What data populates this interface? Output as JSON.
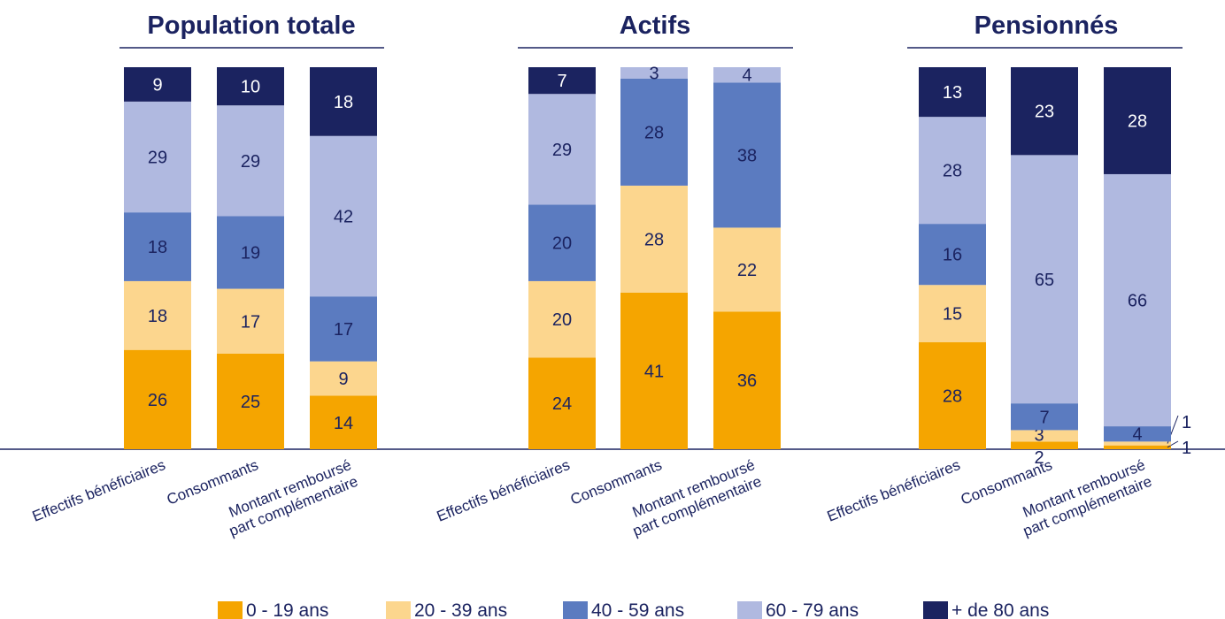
{
  "chart_data": {
    "type": "bar",
    "stacked": true,
    "units": "%",
    "series": [
      {
        "name": "0 - 19 ans",
        "color": "#f5a500"
      },
      {
        "name": "20 - 39 ans",
        "color": "#fcd68e"
      },
      {
        "name": "40 - 59 ans",
        "color": "#5b7bc0"
      },
      {
        "name": "60 - 79 ans",
        "color": "#b0b9e0"
      },
      {
        "name": "+ de 80 ans",
        "color": "#1b2360"
      }
    ],
    "panels": [
      {
        "title": "Population totale",
        "categories": [
          "Effectifs bénéficiaires",
          "Consommants",
          "Montant remboursé part complémentaire"
        ],
        "values": [
          [
            26,
            18,
            18,
            29,
            9
          ],
          [
            25,
            17,
            19,
            29,
            10
          ],
          [
            14,
            9,
            17,
            42,
            18
          ]
        ]
      },
      {
        "title": "Actifs",
        "categories": [
          "Effectifs bénéficiaires",
          "Consommants",
          "Montant remboursé part complémentaire"
        ],
        "values": [
          [
            24,
            20,
            20,
            29,
            7
          ],
          [
            41,
            28,
            28,
            3,
            0
          ],
          [
            36,
            22,
            38,
            4,
            0
          ]
        ]
      },
      {
        "title": "Pensionnés",
        "categories": [
          "Effectifs bénéficiaires",
          "Consommants",
          "Montant remboursé part complémentaire"
        ],
        "values": [
          [
            28,
            15,
            16,
            28,
            13
          ],
          [
            2,
            3,
            7,
            65,
            23
          ],
          [
            1,
            1,
            4,
            66,
            28
          ]
        ]
      }
    ],
    "legend_position": "bottom",
    "grid": false
  }
}
